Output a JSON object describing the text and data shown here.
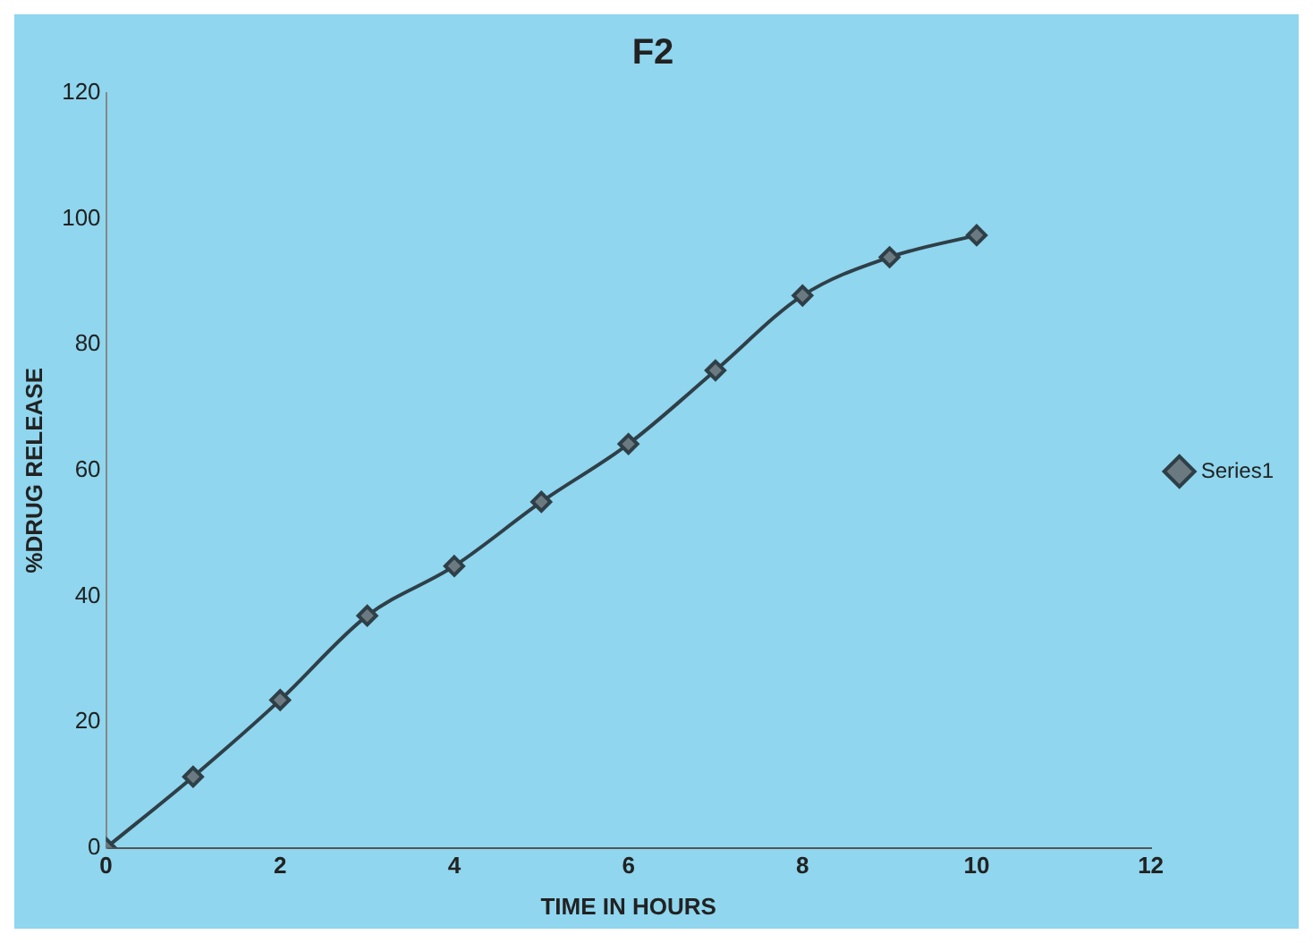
{
  "chart_data": {
    "type": "line",
    "title": "F2",
    "xlabel": "TIME IN HOURS",
    "ylabel": "%DRUG RELEASE",
    "x": [
      0,
      1,
      2,
      3,
      4,
      5,
      6,
      7,
      8,
      9,
      10
    ],
    "series": [
      {
        "name": "Series1",
        "color": "#2f3f48",
        "values": [
          0,
          11.3,
          23.5,
          36.9,
          44.8,
          55,
          64.2,
          75.9,
          87.8,
          93.9,
          97.4
        ]
      }
    ],
    "xlim": [
      0,
      12
    ],
    "xticks": [
      0,
      2,
      4,
      6,
      8,
      10,
      12
    ],
    "ylim": [
      0,
      120
    ],
    "yticks": [
      0,
      20,
      40,
      60,
      80,
      100,
      120
    ],
    "grid": false,
    "legend": "right",
    "marker": "diamond",
    "line_style": "solid"
  }
}
